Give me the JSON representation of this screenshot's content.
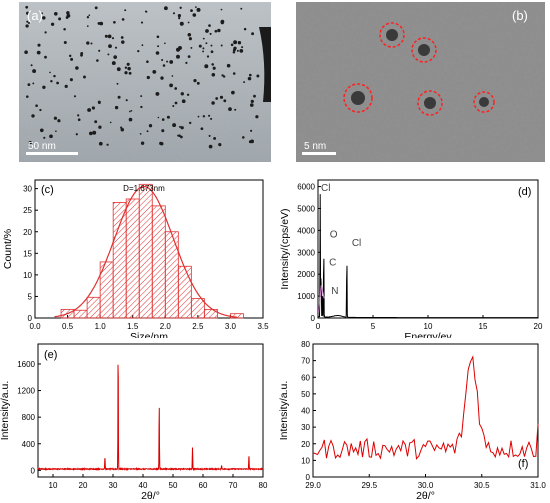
{
  "panels": {
    "a": {
      "label": "(a)",
      "scalebar": "50 nm"
    },
    "b": {
      "label": "(b)",
      "scalebar": "5 nm"
    }
  },
  "chart_data": [
    {
      "id": "c",
      "panel_label": "(c)",
      "type": "bar",
      "annotation": "D=1.673nm",
      "xlabel": "Size/nm",
      "ylabel": "Count/%",
      "xlim": [
        0.0,
        3.5
      ],
      "ylim": [
        0,
        32
      ],
      "xticks": [
        "0.0",
        "0.5",
        "1.0",
        "1.5",
        "2.0",
        "2.5",
        "3.0",
        "3.5"
      ],
      "yticks": [
        "0",
        "5",
        "10",
        "15",
        "20",
        "25",
        "30"
      ],
      "bin_width": 0.2,
      "bins": [
        {
          "x": 0.5,
          "value": 2.0
        },
        {
          "x": 0.7,
          "value": 1.8
        },
        {
          "x": 0.9,
          "value": 4.8
        },
        {
          "x": 1.1,
          "value": 13.0
        },
        {
          "x": 1.3,
          "value": 26.8
        },
        {
          "x": 1.5,
          "value": 27.6
        },
        {
          "x": 1.7,
          "value": 31.0
        },
        {
          "x": 1.9,
          "value": 26.0
        },
        {
          "x": 2.1,
          "value": 20.0
        },
        {
          "x": 2.3,
          "value": 12.0
        },
        {
          "x": 2.5,
          "value": 4.5
        },
        {
          "x": 2.7,
          "value": 2.0
        },
        {
          "x": 3.1,
          "value": 1.0
        }
      ],
      "fit": {
        "mean": 1.673,
        "sigma": 0.45,
        "peak": 30.5
      },
      "colors": {
        "bars": "#e03030",
        "fit": "#e03030"
      }
    },
    {
      "id": "d",
      "panel_label": "(d)",
      "type": "line",
      "xlabel": "Energy/ev",
      "ylabel": "Intensity/(cps/eV)",
      "xlim": [
        0,
        20
      ],
      "ylim": [
        0,
        6300
      ],
      "xticks": [
        "0",
        "5",
        "10",
        "15",
        "20"
      ],
      "yticks": [
        "0",
        "1000",
        "2000",
        "3000",
        "4000",
        "5000",
        "6000"
      ],
      "peaks": [
        {
          "label": "Cl",
          "x": 0.2,
          "y": 5600
        },
        {
          "label": "O",
          "x": 0.52,
          "y": 3500
        },
        {
          "label": "C",
          "x": 0.28,
          "y": 2300
        },
        {
          "label": "N",
          "x": 0.39,
          "y": 1100
        },
        {
          "label": "Cl",
          "x": 2.62,
          "y": 3100
        }
      ],
      "colors": {
        "line": "#000000",
        "highlight": "#d080d0"
      }
    },
    {
      "id": "e",
      "panel_label": "(e)",
      "type": "line",
      "xlabel": "2θ/°",
      "ylabel": "Intensity/a.u.",
      "xlim": [
        5,
        80
      ],
      "ylim": [
        -100,
        1900
      ],
      "xticks": [
        "10",
        "20",
        "30",
        "40",
        "50",
        "60",
        "70",
        "80"
      ],
      "yticks": [
        "0",
        "400",
        "800",
        "1200",
        "1600"
      ],
      "peaks": [
        {
          "x": 27.3,
          "y": 210
        },
        {
          "x": 31.7,
          "y": 1780
        },
        {
          "x": 45.4,
          "y": 970
        },
        {
          "x": 56.5,
          "y": 340
        },
        {
          "x": 66.2,
          "y": 80
        },
        {
          "x": 75.3,
          "y": 230
        }
      ],
      "colors": {
        "line": "#dd0000"
      }
    },
    {
      "id": "f",
      "panel_label": "(f)",
      "type": "line",
      "xlabel": "2θ/°",
      "ylabel": "Intensity/a.u.",
      "xlim": [
        29.0,
        31.0
      ],
      "ylim": [
        0,
        80
      ],
      "xticks": [
        "29.0",
        "29.5",
        "30.0",
        "30.5",
        "31.0"
      ],
      "yticks": [
        "0",
        "10",
        "20",
        "30",
        "40",
        "50",
        "60",
        "70",
        "80"
      ],
      "peak": {
        "x": 30.41,
        "y": 72
      },
      "baseline": 17,
      "colors": {
        "line": "#dd0000"
      }
    }
  ]
}
